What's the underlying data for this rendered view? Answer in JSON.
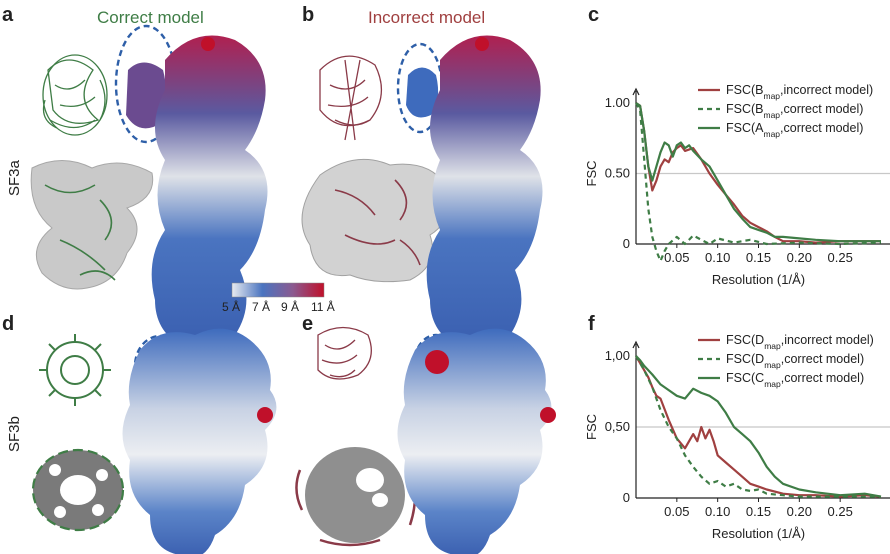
{
  "panels": {
    "a": {
      "letter": "a",
      "title": "Correct model",
      "title_color": "#3f7d46"
    },
    "b": {
      "letter": "b",
      "title": "Incorrect model",
      "title_color": "#a04040"
    },
    "c": {
      "letter": "c"
    },
    "d": {
      "letter": "d"
    },
    "e": {
      "letter": "e"
    },
    "f": {
      "letter": "f"
    }
  },
  "rows": {
    "top": "SF3a",
    "bottom": "SF3b"
  },
  "colorbar": {
    "labels": [
      "5 Å",
      "7 Å",
      "9 Å",
      "11 Å"
    ],
    "colors": [
      "#e8ebf0",
      "#4a74c0",
      "#8a5a90",
      "#c0102a"
    ]
  },
  "colors": {
    "green": "#3f7d46",
    "red": "#a04040",
    "blue_dashed": "#2e5fa8",
    "map_blue": "#3e6bbd",
    "map_red": "#c0102a"
  },
  "chart_data": [
    {
      "type": "line",
      "panel": "c",
      "ylabel": "FSC",
      "xlabel": "Resolution (1/Å)",
      "yticks": [
        "0",
        "0.50",
        "1.00"
      ],
      "ytick_values": [
        0,
        0.5,
        1.0
      ],
      "xticks": [
        "0.05",
        "0.10",
        "0.15",
        "0.20",
        "0.25"
      ],
      "xtick_values": [
        0.05,
        0.1,
        0.15,
        0.2,
        0.25
      ],
      "xlim": [
        0.0,
        0.3
      ],
      "ylim": [
        0,
        1.0
      ],
      "reference_line": 0.5,
      "series": [
        {
          "name_main": "FSC(B",
          "name_sub": "map",
          "name_rest": ",incorrect model)",
          "style": "solid",
          "color": "#a04040",
          "x": [
            0.0,
            0.005,
            0.01,
            0.015,
            0.02,
            0.025,
            0.03,
            0.035,
            0.04,
            0.045,
            0.05,
            0.055,
            0.06,
            0.07,
            0.08,
            0.09,
            0.1,
            0.11,
            0.12,
            0.13,
            0.14,
            0.15,
            0.16,
            0.17,
            0.18,
            0.2,
            0.22,
            0.25,
            0.28,
            0.3
          ],
          "y": [
            1.0,
            0.98,
            0.8,
            0.55,
            0.38,
            0.45,
            0.55,
            0.6,
            0.58,
            0.65,
            0.68,
            0.7,
            0.66,
            0.68,
            0.6,
            0.5,
            0.42,
            0.35,
            0.28,
            0.2,
            0.15,
            0.12,
            0.09,
            0.05,
            0.02,
            0.02,
            0.01,
            0.02,
            0.02,
            0.02
          ]
        },
        {
          "name_main": "FSC(B",
          "name_sub": "map",
          "name_rest": ",correct model)",
          "style": "dashed",
          "color": "#3f7d46",
          "x": [
            0.0,
            0.005,
            0.01,
            0.015,
            0.02,
            0.025,
            0.03,
            0.035,
            0.04,
            0.05,
            0.06,
            0.07,
            0.08,
            0.09,
            0.1,
            0.12,
            0.14,
            0.16,
            0.2,
            0.25,
            0.3
          ],
          "y": [
            1.0,
            0.95,
            0.6,
            0.25,
            0.05,
            -0.05,
            -0.12,
            -0.05,
            0.0,
            0.05,
            0.0,
            0.06,
            0.03,
            0.0,
            0.04,
            0.01,
            0.03,
            0.0,
            0.01,
            0.0,
            0.01
          ]
        },
        {
          "name_main": "FSC(A",
          "name_sub": "map",
          "name_rest": ",correct model)",
          "style": "solid",
          "color": "#3f7d46",
          "x": [
            0.0,
            0.005,
            0.01,
            0.015,
            0.02,
            0.025,
            0.03,
            0.035,
            0.04,
            0.045,
            0.05,
            0.055,
            0.06,
            0.065,
            0.07,
            0.08,
            0.09,
            0.1,
            0.11,
            0.12,
            0.13,
            0.14,
            0.15,
            0.16,
            0.17,
            0.18,
            0.2,
            0.22,
            0.25,
            0.28,
            0.3
          ],
          "y": [
            1.0,
            0.98,
            0.8,
            0.55,
            0.45,
            0.55,
            0.65,
            0.72,
            0.7,
            0.62,
            0.7,
            0.72,
            0.68,
            0.7,
            0.66,
            0.6,
            0.55,
            0.45,
            0.35,
            0.25,
            0.18,
            0.12,
            0.1,
            0.08,
            0.05,
            0.05,
            0.04,
            0.03,
            0.02,
            0.02,
            0.02
          ]
        }
      ]
    },
    {
      "type": "line",
      "panel": "f",
      "ylabel": "FSC",
      "xlabel": "Resolution (1/Å)",
      "yticks": [
        "0",
        "0,50",
        "1,00"
      ],
      "ytick_values": [
        0,
        0.5,
        1.0
      ],
      "xticks": [
        "0.05",
        "0.10",
        "0.15",
        "0.20",
        "0.25"
      ],
      "xtick_values": [
        0.05,
        0.1,
        0.15,
        0.2,
        0.25
      ],
      "xlim": [
        0.0,
        0.3
      ],
      "ylim": [
        0,
        1.0
      ],
      "reference_line": 0.5,
      "series": [
        {
          "name_main": "FSC(D",
          "name_sub": "map",
          "name_rest": ",incorrect model)",
          "style": "solid",
          "color": "#a04040",
          "x": [
            0.0,
            0.005,
            0.01,
            0.015,
            0.02,
            0.025,
            0.03,
            0.04,
            0.05,
            0.06,
            0.07,
            0.075,
            0.08,
            0.085,
            0.09,
            0.095,
            0.1,
            0.11,
            0.12,
            0.13,
            0.14,
            0.15,
            0.16,
            0.18,
            0.2,
            0.22,
            0.25,
            0.28,
            0.3
          ],
          "y": [
            1.0,
            0.95,
            0.9,
            0.85,
            0.78,
            0.72,
            0.7,
            0.55,
            0.42,
            0.35,
            0.45,
            0.4,
            0.5,
            0.42,
            0.48,
            0.4,
            0.3,
            0.25,
            0.2,
            0.15,
            0.1,
            0.08,
            0.06,
            0.03,
            0.02,
            0.02,
            0.01,
            0.02,
            0.01
          ]
        },
        {
          "name_main": "FSC(D",
          "name_sub": "map",
          "name_rest": ",correct model)",
          "style": "dashed",
          "color": "#3f7d46",
          "x": [
            0.0,
            0.005,
            0.01,
            0.02,
            0.03,
            0.04,
            0.05,
            0.06,
            0.07,
            0.08,
            0.09,
            0.1,
            0.11,
            0.12,
            0.13,
            0.14,
            0.15,
            0.16,
            0.18,
            0.2,
            0.25,
            0.3
          ],
          "y": [
            1.0,
            0.95,
            0.9,
            0.78,
            0.62,
            0.5,
            0.42,
            0.3,
            0.22,
            0.15,
            0.1,
            0.12,
            0.08,
            0.1,
            0.06,
            0.05,
            0.06,
            0.03,
            0.02,
            0.01,
            0.01,
            0.01
          ]
        },
        {
          "name_main": "FSC(C",
          "name_sub": "map",
          "name_rest": ",correct model)",
          "style": "solid",
          "color": "#3f7d46",
          "x": [
            0.0,
            0.005,
            0.01,
            0.02,
            0.03,
            0.04,
            0.05,
            0.06,
            0.07,
            0.08,
            0.09,
            0.1,
            0.11,
            0.12,
            0.13,
            0.14,
            0.15,
            0.16,
            0.17,
            0.18,
            0.2,
            0.22,
            0.25,
            0.28,
            0.3
          ],
          "y": [
            1.0,
            0.97,
            0.93,
            0.87,
            0.8,
            0.76,
            0.72,
            0.7,
            0.77,
            0.74,
            0.72,
            0.68,
            0.6,
            0.5,
            0.45,
            0.4,
            0.32,
            0.22,
            0.15,
            0.1,
            0.06,
            0.04,
            0.02,
            0.03,
            0.01
          ]
        }
      ]
    }
  ]
}
